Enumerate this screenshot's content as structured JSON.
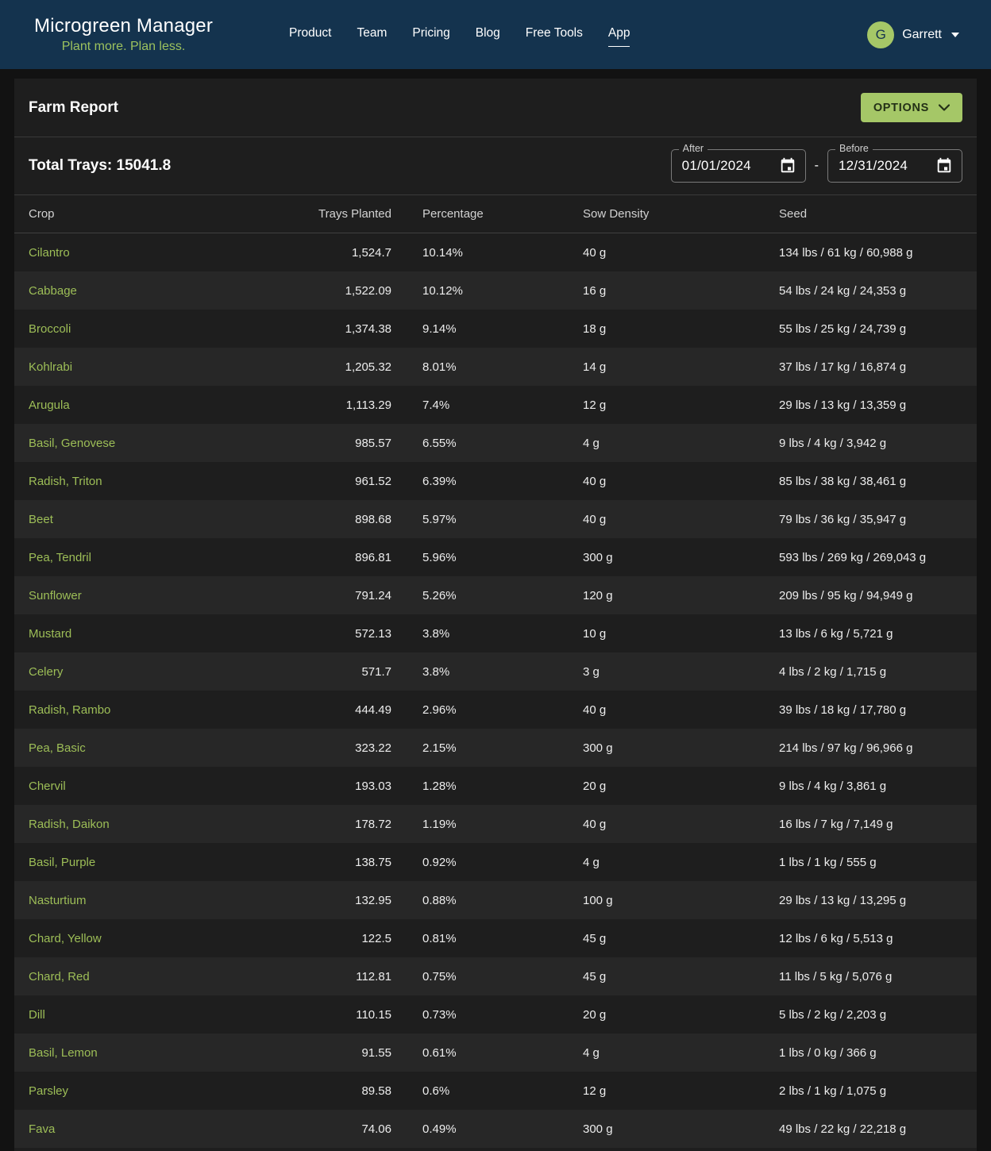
{
  "colors": {
    "page_bg": "#121212",
    "header_bg": "#14334e",
    "card_bg": "#1e1e1e",
    "row_alt": "#272727",
    "accent": "#a5c767",
    "link": "#9dbe57",
    "tagline": "#9cc25e"
  },
  "header": {
    "brand": {
      "title": "Microgreen Manager",
      "tagline": "Plant more. Plan less."
    },
    "nav": [
      {
        "label": "Product",
        "active": false
      },
      {
        "label": "Team",
        "active": false
      },
      {
        "label": "Pricing",
        "active": false
      },
      {
        "label": "Blog",
        "active": false
      },
      {
        "label": "Free Tools",
        "active": false
      },
      {
        "label": "App",
        "active": true
      }
    ],
    "user": {
      "initial": "G",
      "name": "Garrett"
    }
  },
  "report": {
    "title": "Farm Report",
    "options_label": "OPTIONS",
    "total_trays": "Total Trays: 15041.8",
    "date_range": {
      "after": {
        "label": "After",
        "value": "01/01/2024"
      },
      "separator": "-",
      "before": {
        "label": "Before",
        "value": "12/31/2024"
      }
    }
  },
  "table": {
    "columns": [
      "Crop",
      "Trays Planted",
      "Percentage",
      "Sow Density",
      "Seed"
    ],
    "rows": [
      {
        "crop": "Cilantro",
        "trays_planted": "1,524.7",
        "percentage": "10.14%",
        "sow_density": "40 g",
        "seed": "134 lbs / 61 kg / 60,988 g"
      },
      {
        "crop": "Cabbage",
        "trays_planted": "1,522.09",
        "percentage": "10.12%",
        "sow_density": "16 g",
        "seed": "54 lbs / 24 kg / 24,353 g"
      },
      {
        "crop": "Broccoli",
        "trays_planted": "1,374.38",
        "percentage": "9.14%",
        "sow_density": "18 g",
        "seed": "55 lbs / 25 kg / 24,739 g"
      },
      {
        "crop": "Kohlrabi",
        "trays_planted": "1,205.32",
        "percentage": "8.01%",
        "sow_density": "14 g",
        "seed": "37 lbs / 17 kg / 16,874 g"
      },
      {
        "crop": "Arugula",
        "trays_planted": "1,113.29",
        "percentage": "7.4%",
        "sow_density": "12 g",
        "seed": "29 lbs / 13 kg / 13,359 g"
      },
      {
        "crop": "Basil, Genovese",
        "trays_planted": "985.57",
        "percentage": "6.55%",
        "sow_density": "4 g",
        "seed": "9 lbs / 4 kg / 3,942 g"
      },
      {
        "crop": "Radish, Triton",
        "trays_planted": "961.52",
        "percentage": "6.39%",
        "sow_density": "40 g",
        "seed": "85 lbs / 38 kg / 38,461 g"
      },
      {
        "crop": "Beet",
        "trays_planted": "898.68",
        "percentage": "5.97%",
        "sow_density": "40 g",
        "seed": "79 lbs / 36 kg / 35,947 g"
      },
      {
        "crop": "Pea, Tendril",
        "trays_planted": "896.81",
        "percentage": "5.96%",
        "sow_density": "300 g",
        "seed": "593 lbs / 269 kg / 269,043 g"
      },
      {
        "crop": "Sunflower",
        "trays_planted": "791.24",
        "percentage": "5.26%",
        "sow_density": "120 g",
        "seed": "209 lbs / 95 kg / 94,949 g"
      },
      {
        "crop": "Mustard",
        "trays_planted": "572.13",
        "percentage": "3.8%",
        "sow_density": "10 g",
        "seed": "13 lbs / 6 kg / 5,721 g"
      },
      {
        "crop": "Celery",
        "trays_planted": "571.7",
        "percentage": "3.8%",
        "sow_density": "3 g",
        "seed": "4 lbs / 2 kg / 1,715 g"
      },
      {
        "crop": "Radish, Rambo",
        "trays_planted": "444.49",
        "percentage": "2.96%",
        "sow_density": "40 g",
        "seed": "39 lbs / 18 kg / 17,780 g"
      },
      {
        "crop": "Pea, Basic",
        "trays_planted": "323.22",
        "percentage": "2.15%",
        "sow_density": "300 g",
        "seed": "214 lbs / 97 kg / 96,966 g"
      },
      {
        "crop": "Chervil",
        "trays_planted": "193.03",
        "percentage": "1.28%",
        "sow_density": "20 g",
        "seed": "9 lbs / 4 kg / 3,861 g"
      },
      {
        "crop": "Radish, Daikon",
        "trays_planted": "178.72",
        "percentage": "1.19%",
        "sow_density": "40 g",
        "seed": "16 lbs / 7 kg / 7,149 g"
      },
      {
        "crop": "Basil, Purple",
        "trays_planted": "138.75",
        "percentage": "0.92%",
        "sow_density": "4 g",
        "seed": "1 lbs / 1 kg / 555 g"
      },
      {
        "crop": "Nasturtium",
        "trays_planted": "132.95",
        "percentage": "0.88%",
        "sow_density": "100 g",
        "seed": "29 lbs / 13 kg / 13,295 g"
      },
      {
        "crop": "Chard, Yellow",
        "trays_planted": "122.5",
        "percentage": "0.81%",
        "sow_density": "45 g",
        "seed": "12 lbs / 6 kg / 5,513 g"
      },
      {
        "crop": "Chard, Red",
        "trays_planted": "112.81",
        "percentage": "0.75%",
        "sow_density": "45 g",
        "seed": "11 lbs / 5 kg / 5,076 g"
      },
      {
        "crop": "Dill",
        "trays_planted": "110.15",
        "percentage": "0.73%",
        "sow_density": "20 g",
        "seed": "5 lbs / 2 kg / 2,203 g"
      },
      {
        "crop": "Basil, Lemon",
        "trays_planted": "91.55",
        "percentage": "0.61%",
        "sow_density": "4 g",
        "seed": "1 lbs / 0 kg / 366 g"
      },
      {
        "crop": "Parsley",
        "trays_planted": "89.58",
        "percentage": "0.6%",
        "sow_density": "12 g",
        "seed": "2 lbs / 1 kg / 1,075 g"
      },
      {
        "crop": "Fava",
        "trays_planted": "74.06",
        "percentage": "0.49%",
        "sow_density": "300 g",
        "seed": "49 lbs / 22 kg / 22,218 g"
      }
    ]
  }
}
